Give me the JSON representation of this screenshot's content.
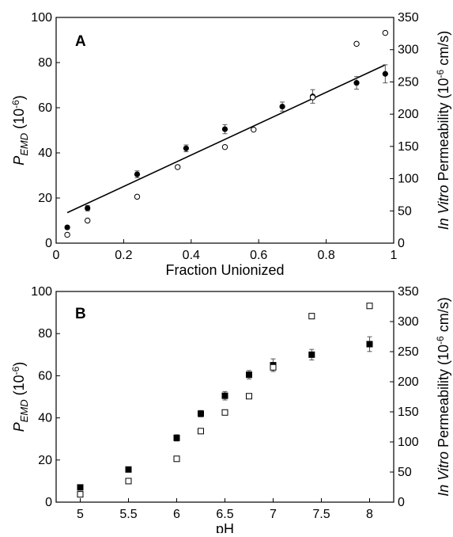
{
  "chart_data": [
    {
      "type": "scatter",
      "panel_label": "A",
      "xlabel": "Fraction Unionized",
      "ylabel_left_main": "P",
      "ylabel_left_sub": "EMD",
      "ylabel_left_unit": " (10",
      "ylabel_left_unit_exp": "-6",
      "ylabel_left_unit_end": ")",
      "ylabel_right_italic": "In Vitro",
      "ylabel_right_rest": " Permeability (10",
      "ylabel_right_exp": "-6",
      "ylabel_right_end": " cm/s)",
      "xlim": [
        0,
        1.0
      ],
      "ylim_left": [
        0,
        100
      ],
      "ylim_right": [
        0,
        350
      ],
      "xticks": [
        "0",
        "0.2",
        "0.4",
        "0.6",
        "0.8",
        "1"
      ],
      "xtick_values": [
        0,
        0.2,
        0.4,
        0.6,
        0.8,
        1.0
      ],
      "yticks_left": [
        "0",
        "20",
        "40",
        "60",
        "80",
        "100"
      ],
      "ytick_left_values": [
        0,
        20,
        40,
        60,
        80,
        100
      ],
      "yticks_right": [
        "0",
        "50",
        "100",
        "150",
        "200",
        "250",
        "300",
        "350"
      ],
      "ytick_right_values": [
        0,
        50,
        100,
        150,
        200,
        250,
        300,
        350
      ],
      "grid": false,
      "series": [
        {
          "marker": "filled-circle",
          "axis": "left",
          "x": [
            0.033,
            0.093,
            0.24,
            0.385,
            0.5,
            0.67,
            0.76,
            0.89,
            0.975
          ],
          "y": [
            7,
            15.5,
            30.5,
            42,
            50.5,
            60.5,
            65,
            71,
            75
          ],
          "err": [
            0.5,
            1.2,
            1.5,
            1.5,
            2.0,
            2.0,
            3.0,
            2.8,
            4.0
          ]
        },
        {
          "marker": "open-circle",
          "axis": "right",
          "x": [
            0.033,
            0.093,
            0.24,
            0.36,
            0.5,
            0.585,
            0.76,
            0.89,
            0.975
          ],
          "y": [
            13,
            35,
            72,
            118,
            149,
            176,
            226,
            309,
            326
          ]
        }
      ],
      "fit_line": {
        "x": [
          0.033,
          0.975
        ],
        "y": [
          13.5,
          79
        ]
      }
    },
    {
      "type": "scatter",
      "panel_label": "B",
      "xlabel": "pH",
      "ylabel_left_main": "P",
      "ylabel_left_sub": "EMD",
      "ylabel_left_unit": " (10",
      "ylabel_left_unit_exp": "-6",
      "ylabel_left_unit_end": ")",
      "ylabel_right_italic": "In Vitro",
      "ylabel_right_rest": " Permeability (10",
      "ylabel_right_exp": "-6",
      "ylabel_right_end": " cm/s)",
      "xlim": [
        4.75,
        8.25
      ],
      "ylim_left": [
        0,
        100
      ],
      "ylim_right": [
        0,
        350
      ],
      "xticks": [
        "5",
        "5.5",
        "6",
        "6.5",
        "7",
        "7.5",
        "8"
      ],
      "xtick_values": [
        5,
        5.5,
        6,
        6.5,
        7,
        7.5,
        8
      ],
      "yticks_left": [
        "0",
        "20",
        "40",
        "60",
        "80",
        "100"
      ],
      "ytick_left_values": [
        0,
        20,
        40,
        60,
        80,
        100
      ],
      "yticks_right": [
        "0",
        "50",
        "100",
        "150",
        "200",
        "250",
        "300",
        "350"
      ],
      "ytick_right_values": [
        0,
        50,
        100,
        150,
        200,
        250,
        300,
        350
      ],
      "grid": false,
      "series": [
        {
          "marker": "filled-square",
          "axis": "left",
          "x": [
            5,
            5.5,
            6,
            6.25,
            6.5,
            6.75,
            7,
            7.4,
            8
          ],
          "y": [
            7,
            15.5,
            30.5,
            42,
            50.5,
            60.5,
            65,
            70,
            75
          ],
          "err": [
            0.5,
            0.8,
            1.5,
            1.5,
            2.0,
            2.0,
            3.0,
            2.5,
            3.5
          ]
        },
        {
          "marker": "open-square",
          "axis": "right",
          "x": [
            5,
            5.5,
            6,
            6.25,
            6.5,
            6.75,
            7,
            7.4,
            8
          ],
          "y": [
            13,
            35,
            72,
            118,
            149,
            176,
            224,
            309,
            326
          ]
        }
      ]
    }
  ]
}
